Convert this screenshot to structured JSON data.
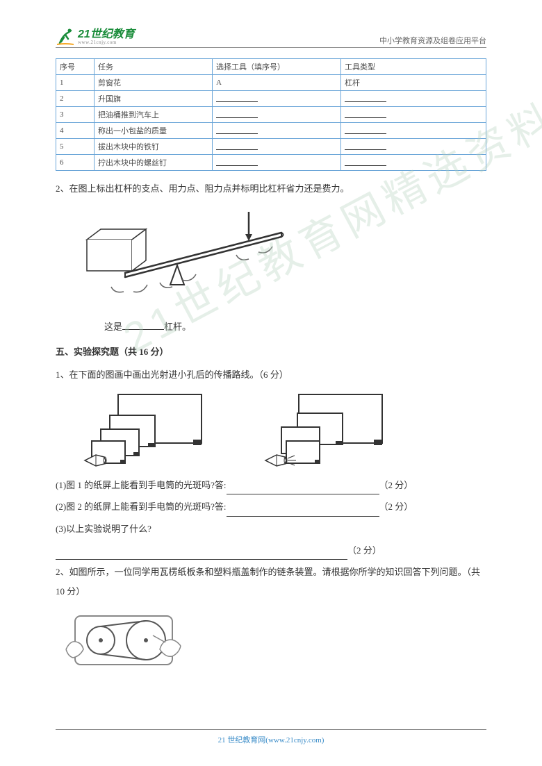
{
  "header": {
    "logo_main": "21世纪教育",
    "logo_sub": "www.21cnjy.com",
    "right_text": "中小学教育资源及组卷应用平台"
  },
  "watermark": "21世纪教育网精选资料",
  "table": {
    "headers": [
      "序号",
      "任务",
      "选择工具（填序号）",
      "工具类型"
    ],
    "rows": [
      {
        "seq": "1",
        "task": "剪窗花",
        "tool": "A",
        "type": "杠杆"
      },
      {
        "seq": "2",
        "task": "升国旗",
        "tool": "",
        "type": ""
      },
      {
        "seq": "3",
        "task": "把油桶推到汽车上",
        "tool": "",
        "type": ""
      },
      {
        "seq": "4",
        "task": "称出一小包盐的质量",
        "tool": "",
        "type": ""
      },
      {
        "seq": "5",
        "task": "拔出木块中的铁钉",
        "tool": "",
        "type": ""
      },
      {
        "seq": "6",
        "task": "拧出木块中的螺丝钉",
        "tool": "",
        "type": ""
      }
    ]
  },
  "q2": {
    "text": "2、在图上标出杠杆的支点、用力点、阻力点并标明比杠杆省力还是费力。",
    "caption_prefix": "这是",
    "caption_suffix": "杠杆。"
  },
  "section5": {
    "title": "五、实验探究题（共 16 分）",
    "q1_text": "1、在下面的图画中画出光射进小孔后的传播路线。（6 分）",
    "sub1": "(1)图 1 的纸屏上能看到手电筒的光斑吗?答:",
    "sub2": "(2)图 2 的纸屏上能看到手电筒的光斑吗?答:",
    "sub3": "(3)以上实验说明了什么?",
    "points": "（2 分）",
    "q2_text": "2、如图所示，一位同学用瓦楞纸板条和塑料瓶盖制作的链条装置。请根据你所学的知识回答下列问题。（共 10 分）"
  },
  "footer": "21 世纪教育网(www.21cnjy.com)",
  "colors": {
    "border": "#6aa5d8",
    "text": "#333333",
    "logo_green": "#1a8c3a",
    "footer_blue": "#3a8cc8"
  }
}
